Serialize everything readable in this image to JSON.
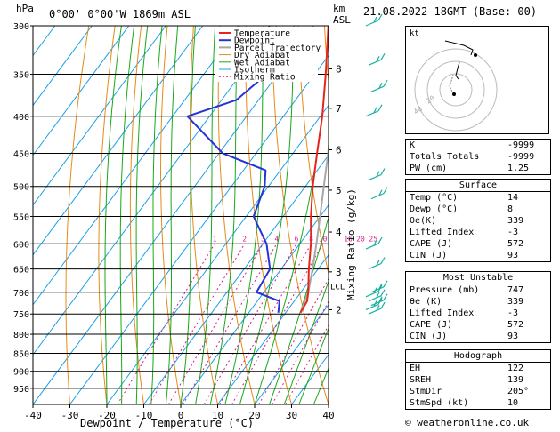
{
  "header": {
    "location": "0°00' 0°00'W  1869m  ASL",
    "hpa_unit": "hPa",
    "km_unit": "km\nASL",
    "datetime": "21.08.2022  18GMT  (Base: 00)"
  },
  "colors": {
    "temperature": "#e8241c",
    "dewpoint": "#2633d6",
    "parcel": "#a8a8a8",
    "dry_adiabat": "#e88a18",
    "wet_adiabat": "#1aa81a",
    "isotherm": "#1aa0e8",
    "mixing_ratio": "#d81a8c",
    "wind": "#18b0a0"
  },
  "chart_data": {
    "type": "skew-t",
    "xlabel": "Dewpoint / Temperature (°C)",
    "ylabel_right": "Mixing Ratio (g/kg)",
    "x_ticks": [
      -40,
      -30,
      -20,
      -10,
      0,
      10,
      20,
      30,
      40
    ],
    "pressure_levels": [
      300,
      350,
      400,
      450,
      500,
      550,
      600,
      650,
      700,
      750,
      800,
      850,
      900,
      950
    ],
    "plim": [
      300,
      1000
    ],
    "km_ticks": [
      {
        "label": "8",
        "p": 344
      },
      {
        "label": "7",
        "p": 390
      },
      {
        "label": "6",
        "p": 445
      },
      {
        "label": "5",
        "p": 506
      },
      {
        "label": "4",
        "p": 578
      },
      {
        "label": "3",
        "p": 656
      },
      {
        "label": "2",
        "p": 740
      }
    ],
    "lcl": {
      "label": "LCL",
      "p": 686
    },
    "legend": [
      "Temperature",
      "Dewpoint",
      "Parcel Trajectory",
      "Dry Adiabat",
      "Wet Adiabat",
      "Isotherm",
      "Mixing Ratio"
    ],
    "mixing_ratio_labels": [
      "1",
      "2",
      "3",
      "4",
      "6",
      "8",
      "10",
      "16",
      "20",
      "25"
    ],
    "mixing_ratio_values": [
      1,
      2,
      3,
      4,
      6,
      8,
      10,
      16,
      20,
      25
    ],
    "temperature": [
      {
        "p": 747,
        "t": 14.0
      },
      {
        "p": 720,
        "t": 13.5
      },
      {
        "p": 700,
        "t": 12.0
      },
      {
        "p": 650,
        "t": 7.5
      },
      {
        "p": 600,
        "t": 3.0
      },
      {
        "p": 550,
        "t": -2.5
      },
      {
        "p": 500,
        "t": -8.0
      },
      {
        "p": 450,
        "t": -13.5
      },
      {
        "p": 400,
        "t": -19.5
      },
      {
        "p": 350,
        "t": -27.0
      },
      {
        "p": 300,
        "t": -36.0
      }
    ],
    "dewpoint": [
      {
        "p": 747,
        "t": 8.0
      },
      {
        "p": 720,
        "t": 6.0
      },
      {
        "p": 700,
        "t": -2.0
      },
      {
        "p": 650,
        "t": -3.0
      },
      {
        "p": 600,
        "t": -9.0
      },
      {
        "p": 550,
        "t": -18.0
      },
      {
        "p": 500,
        "t": -21.0
      },
      {
        "p": 475,
        "t": -24.0
      },
      {
        "p": 450,
        "t": -39.0
      },
      {
        "p": 400,
        "t": -56.0
      },
      {
        "p": 380,
        "t": -46.0
      },
      {
        "p": 350,
        "t": -43.0
      },
      {
        "p": 300,
        "t": -52.0
      }
    ],
    "parcel": [
      {
        "p": 747,
        "t": 14.0
      },
      {
        "p": 700,
        "t": 12.0
      },
      {
        "p": 650,
        "t": 8.5
      },
      {
        "p": 600,
        "t": 4.5
      },
      {
        "p": 550,
        "t": 0.0
      },
      {
        "p": 500,
        "t": -5.0
      },
      {
        "p": 450,
        "t": -10.5
      },
      {
        "p": 400,
        "t": -17.0
      },
      {
        "p": 350,
        "t": -24.5
      },
      {
        "p": 300,
        "t": -33.5
      }
    ],
    "wind_barbs": [
      300,
      340,
      370,
      400,
      490,
      520,
      610,
      650,
      700,
      710,
      720,
      730,
      740,
      750
    ]
  },
  "hodograph": {
    "unit": "kt",
    "ring_labels": [
      "20",
      "40"
    ]
  },
  "indices": [
    {
      "label": "K",
      "value": "-9999"
    },
    {
      "label": "Totals Totals",
      "value": "-9999"
    },
    {
      "label": "PW (cm)",
      "value": "1.25"
    }
  ],
  "surface": {
    "title": "Surface",
    "rows": [
      {
        "label": "Temp (°C)",
        "value": "14"
      },
      {
        "label": "Dewp (°C)",
        "value": "8"
      },
      {
        "label": "θe(K)",
        "value": "339"
      },
      {
        "label": "Lifted Index",
        "value": "-3"
      },
      {
        "label": "CAPE (J)",
        "value": "572"
      },
      {
        "label": "CIN (J)",
        "value": "93"
      }
    ]
  },
  "most_unstable": {
    "title": "Most Unstable",
    "rows": [
      {
        "label": "Pressure (mb)",
        "value": "747"
      },
      {
        "label": "θe (K)",
        "value": "339"
      },
      {
        "label": "Lifted Index",
        "value": "-3"
      },
      {
        "label": "CAPE (J)",
        "value": "572"
      },
      {
        "label": "CIN (J)",
        "value": "93"
      }
    ]
  },
  "hodograph_stats": {
    "title": "Hodograph",
    "rows": [
      {
        "label": "EH",
        "value": "122"
      },
      {
        "label": "SREH",
        "value": "139"
      },
      {
        "label": "StmDir",
        "value": "205°"
      },
      {
        "label": "StmSpd (kt)",
        "value": "10"
      }
    ]
  },
  "footer": "© weatheronline.co.uk"
}
